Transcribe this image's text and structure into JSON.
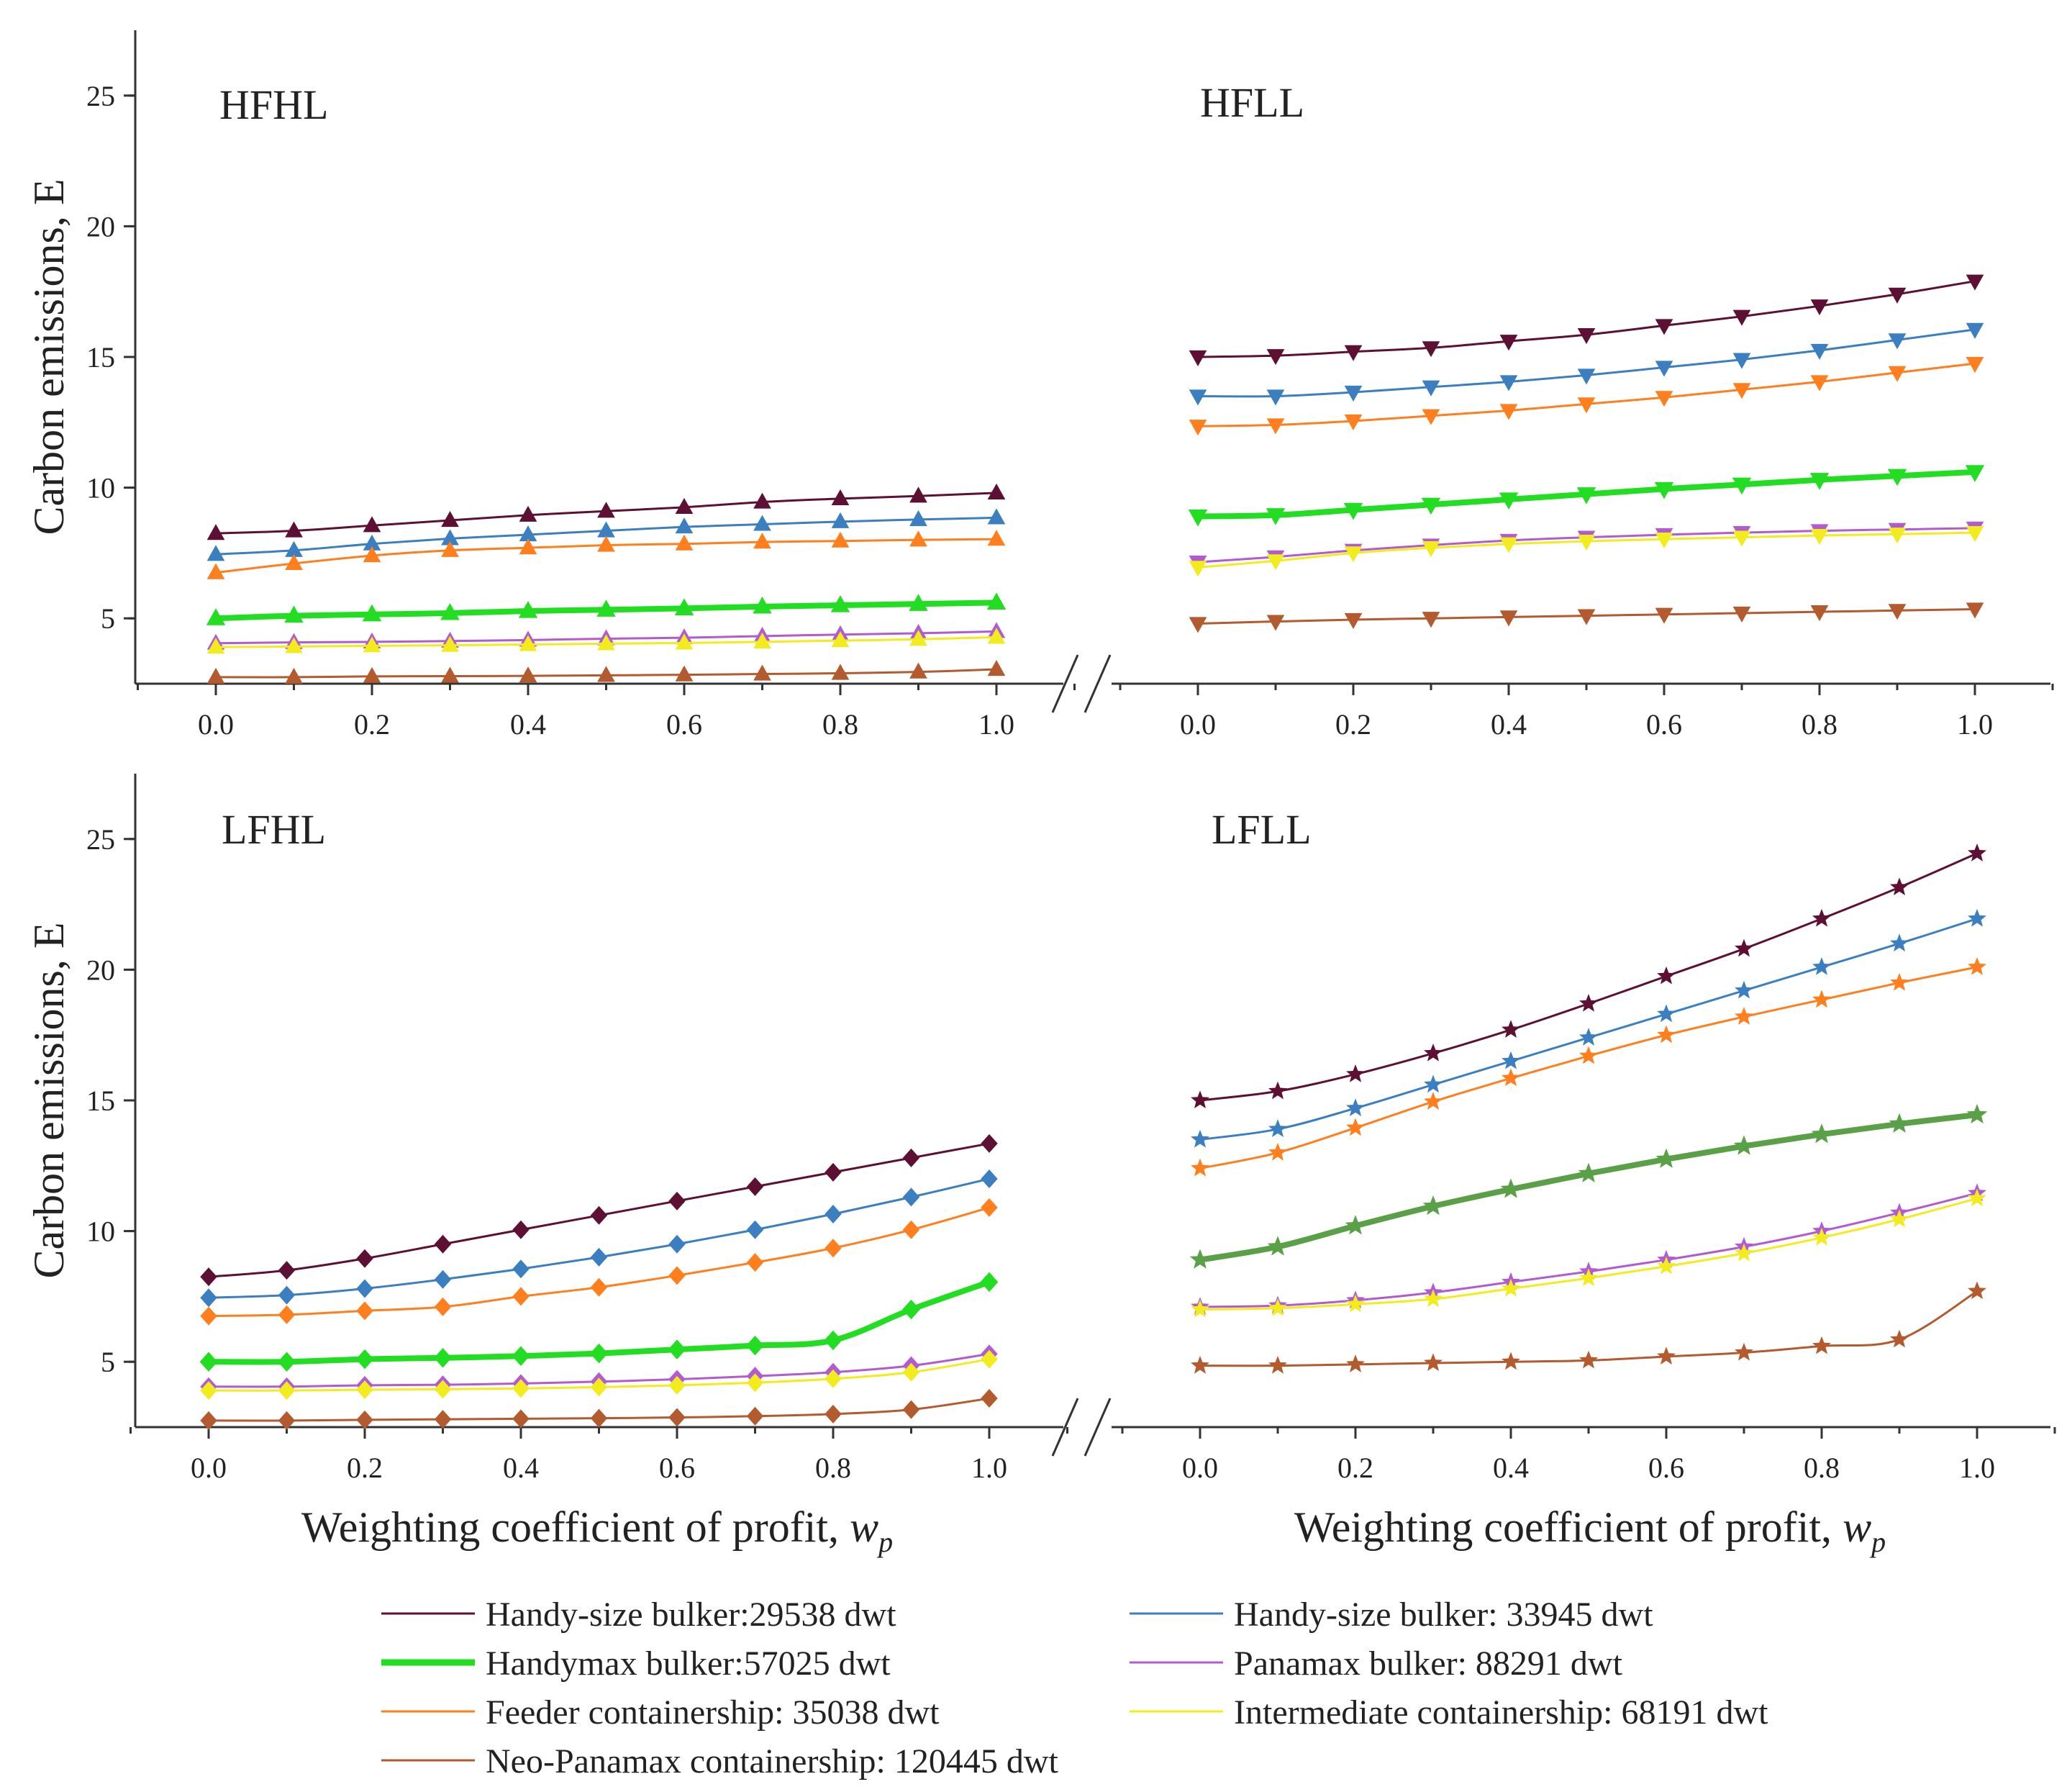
{
  "figure": {
    "ylabel": "Carbon emissions, E",
    "xlabel_main": "Weighting coefficient of profit,",
    "xlabel_symbol": "w",
    "xlabel_subscript": "p"
  },
  "colors": {
    "handy_29538": "#5e0f34",
    "handy_33945": "#3b7fc0",
    "handymax_57025": "#22dd22",
    "panamax_88291": "#b25bd0",
    "feeder_35038": "#ff7f1e",
    "intermediate_68191": "#f2ec1e",
    "neo_120445": "#b35a2f",
    "handymax_lfll": "#5aa046"
  },
  "legend": [
    {
      "label": "Handy-size bulker:29538 dwt",
      "color": "#5e0f34",
      "bold": false
    },
    {
      "label": "Handy-size bulker: 33945 dwt",
      "color": "#3b7fc0",
      "bold": false
    },
    {
      "label": "Handymax bulker:57025 dwt",
      "color": "#22dd22",
      "bold": true
    },
    {
      "label": "Panamax bulker: 88291 dwt",
      "color": "#b25bd0",
      "bold": false
    },
    {
      "label": "Feeder containership: 35038 dwt",
      "color": "#ff7f1e",
      "bold": false
    },
    {
      "label": "Intermediate containership: 68191 dwt",
      "color": "#f2ec1e",
      "bold": false
    },
    {
      "label": "Neo-Panamax containership: 120445 dwt",
      "color": "#b35a2f",
      "bold": false
    }
  ],
  "chart_data": [
    {
      "type": "line",
      "title": "HFHL",
      "marker": "triangle-up",
      "xlabel": "",
      "ylabel": "Carbon emissions, E",
      "x": [
        0.0,
        0.1,
        0.2,
        0.3,
        0.4,
        0.5,
        0.6,
        0.7,
        0.8,
        0.9,
        1.0
      ],
      "xticks": [
        "0.0",
        "0.2",
        "0.4",
        "0.6",
        "0.8",
        "1.0"
      ],
      "yticks": [
        "5",
        "10",
        "15",
        "20",
        "25"
      ],
      "ylim": [
        2.5,
        27.5
      ],
      "series": [
        {
          "name": "Handy-size bulker:29538 dwt",
          "values": [
            8.25,
            8.35,
            8.55,
            8.75,
            8.95,
            9.1,
            9.25,
            9.45,
            9.58,
            9.68,
            9.8
          ]
        },
        {
          "name": "Handy-size bulker: 33945 dwt",
          "values": [
            7.45,
            7.6,
            7.85,
            8.05,
            8.2,
            8.35,
            8.5,
            8.6,
            8.7,
            8.78,
            8.85
          ]
        },
        {
          "name": "Feeder containership: 35038 dwt",
          "values": [
            6.75,
            7.1,
            7.4,
            7.6,
            7.7,
            7.8,
            7.85,
            7.92,
            7.96,
            8.0,
            8.03
          ]
        },
        {
          "name": "Handymax bulker:57025 dwt",
          "values": [
            5.0,
            5.1,
            5.15,
            5.2,
            5.28,
            5.33,
            5.38,
            5.45,
            5.5,
            5.55,
            5.6
          ]
        },
        {
          "name": "Panamax bulker: 88291 dwt",
          "values": [
            4.05,
            4.08,
            4.1,
            4.13,
            4.17,
            4.22,
            4.26,
            4.32,
            4.38,
            4.43,
            4.5
          ]
        },
        {
          "name": "Intermediate containership: 68191 dwt",
          "values": [
            3.9,
            3.92,
            3.95,
            3.97,
            4.0,
            4.03,
            4.06,
            4.1,
            4.15,
            4.2,
            4.28
          ]
        },
        {
          "name": "Neo-Panamax containership: 120445 dwt",
          "values": [
            2.75,
            2.75,
            2.78,
            2.79,
            2.8,
            2.82,
            2.84,
            2.87,
            2.9,
            2.95,
            3.05
          ]
        }
      ]
    },
    {
      "type": "line",
      "title": "HFLL",
      "marker": "triangle-down",
      "xlabel": "",
      "ylabel": "",
      "x": [
        0.0,
        0.1,
        0.2,
        0.3,
        0.4,
        0.5,
        0.6,
        0.7,
        0.8,
        0.9,
        1.0
      ],
      "xticks": [
        "0.0",
        "0.2",
        "0.4",
        "0.6",
        "0.8",
        "1.0"
      ],
      "ylim": [
        2.5,
        27.5
      ],
      "series": [
        {
          "name": "Handy-size bulker:29538 dwt",
          "values": [
            15.0,
            15.05,
            15.2,
            15.35,
            15.6,
            15.85,
            16.2,
            16.55,
            16.95,
            17.4,
            17.9
          ]
        },
        {
          "name": "Handy-size bulker: 33945 dwt",
          "values": [
            13.5,
            13.5,
            13.65,
            13.85,
            14.05,
            14.3,
            14.6,
            14.9,
            15.25,
            15.65,
            16.05
          ]
        },
        {
          "name": "Feeder containership: 35038 dwt",
          "values": [
            12.35,
            12.4,
            12.55,
            12.75,
            12.95,
            13.2,
            13.45,
            13.75,
            14.05,
            14.4,
            14.75
          ]
        },
        {
          "name": "Handymax bulker:57025 dwt",
          "values": [
            8.9,
            8.95,
            9.15,
            9.35,
            9.55,
            9.75,
            9.95,
            10.12,
            10.3,
            10.45,
            10.6
          ]
        },
        {
          "name": "Panamax bulker: 88291 dwt",
          "values": [
            7.15,
            7.35,
            7.6,
            7.8,
            7.98,
            8.1,
            8.2,
            8.28,
            8.35,
            8.4,
            8.45
          ]
        },
        {
          "name": "Intermediate containership: 68191 dwt",
          "values": [
            6.95,
            7.2,
            7.5,
            7.7,
            7.85,
            7.95,
            8.03,
            8.1,
            8.17,
            8.22,
            8.28
          ]
        },
        {
          "name": "Neo-Panamax containership: 120445 dwt",
          "values": [
            4.8,
            4.88,
            4.95,
            5.0,
            5.05,
            5.1,
            5.15,
            5.2,
            5.25,
            5.3,
            5.35
          ]
        }
      ]
    },
    {
      "type": "line",
      "title": "LFHL",
      "marker": "diamond",
      "xlabel": "Weighting coefficient of profit, w_p",
      "ylabel": "Carbon emissions, E",
      "x": [
        0.0,
        0.1,
        0.2,
        0.3,
        0.4,
        0.5,
        0.6,
        0.7,
        0.8,
        0.9,
        1.0
      ],
      "xticks": [
        "0.0",
        "0.2",
        "0.4",
        "0.6",
        "0.8",
        "1.0"
      ],
      "yticks": [
        "5",
        "10",
        "15",
        "20",
        "25"
      ],
      "ylim": [
        2.5,
        27.5
      ],
      "series": [
        {
          "name": "Handy-size bulker:29538 dwt",
          "values": [
            8.25,
            8.5,
            8.95,
            9.5,
            10.05,
            10.6,
            11.15,
            11.7,
            12.25,
            12.8,
            13.35
          ]
        },
        {
          "name": "Handy-size bulker: 33945 dwt",
          "values": [
            7.45,
            7.55,
            7.8,
            8.15,
            8.55,
            9.0,
            9.5,
            10.05,
            10.65,
            11.3,
            12.0
          ]
        },
        {
          "name": "Feeder containership: 35038 dwt",
          "values": [
            6.75,
            6.8,
            6.95,
            7.1,
            7.5,
            7.85,
            8.3,
            8.8,
            9.35,
            10.05,
            10.9
          ]
        },
        {
          "name": "Handymax bulker:57025 dwt",
          "values": [
            5.0,
            5.0,
            5.1,
            5.15,
            5.22,
            5.32,
            5.47,
            5.62,
            5.82,
            7.0,
            8.05
          ]
        },
        {
          "name": "Panamax bulker: 88291 dwt",
          "values": [
            4.05,
            4.05,
            4.1,
            4.12,
            4.17,
            4.24,
            4.33,
            4.45,
            4.6,
            4.85,
            5.3
          ]
        },
        {
          "name": "Intermediate containership: 68191 dwt",
          "values": [
            3.9,
            3.9,
            3.93,
            3.95,
            3.98,
            4.03,
            4.1,
            4.2,
            4.35,
            4.6,
            5.1
          ]
        },
        {
          "name": "Neo-Panamax containership: 120445 dwt",
          "values": [
            2.75,
            2.75,
            2.78,
            2.8,
            2.82,
            2.84,
            2.87,
            2.92,
            3.0,
            3.17,
            3.6
          ]
        }
      ]
    },
    {
      "type": "line",
      "title": "LFLL",
      "marker": "star",
      "xlabel": "Weighting coefficient of profit, w_p",
      "ylabel": "",
      "x": [
        0.0,
        0.1,
        0.2,
        0.3,
        0.4,
        0.5,
        0.6,
        0.7,
        0.8,
        0.9,
        1.0
      ],
      "xticks": [
        "0.0",
        "0.2",
        "0.4",
        "0.6",
        "0.8",
        "1.0"
      ],
      "ylim": [
        2.5,
        27.5
      ],
      "series": [
        {
          "name": "Handy-size bulker:29538 dwt",
          "values": [
            15.0,
            15.35,
            16.0,
            16.8,
            17.7,
            18.7,
            19.75,
            20.8,
            21.95,
            23.15,
            24.45
          ]
        },
        {
          "name": "Handy-size bulker: 33945 dwt",
          "values": [
            13.5,
            13.9,
            14.7,
            15.6,
            16.5,
            17.4,
            18.3,
            19.2,
            20.1,
            21.0,
            21.95
          ]
        },
        {
          "name": "Feeder containership: 35038 dwt",
          "values": [
            12.4,
            13.0,
            13.95,
            14.95,
            15.85,
            16.7,
            17.5,
            18.2,
            18.85,
            19.5,
            20.1
          ]
        },
        {
          "name": "Handymax bulker:57025 dwt",
          "values": [
            8.9,
            9.4,
            10.2,
            10.95,
            11.6,
            12.2,
            12.75,
            13.25,
            13.7,
            14.1,
            14.45
          ]
        },
        {
          "name": "Panamax bulker: 88291 dwt",
          "values": [
            7.1,
            7.15,
            7.35,
            7.65,
            8.05,
            8.45,
            8.9,
            9.4,
            10.0,
            10.7,
            11.45
          ]
        },
        {
          "name": "Intermediate containership: 68191 dwt",
          "values": [
            7.0,
            7.05,
            7.2,
            7.4,
            7.8,
            8.2,
            8.65,
            9.15,
            9.75,
            10.45,
            11.25
          ]
        },
        {
          "name": "Neo-Panamax containership: 120445 dwt",
          "values": [
            4.85,
            4.85,
            4.9,
            4.95,
            5.0,
            5.05,
            5.2,
            5.35,
            5.6,
            5.85,
            7.7
          ]
        }
      ]
    }
  ]
}
